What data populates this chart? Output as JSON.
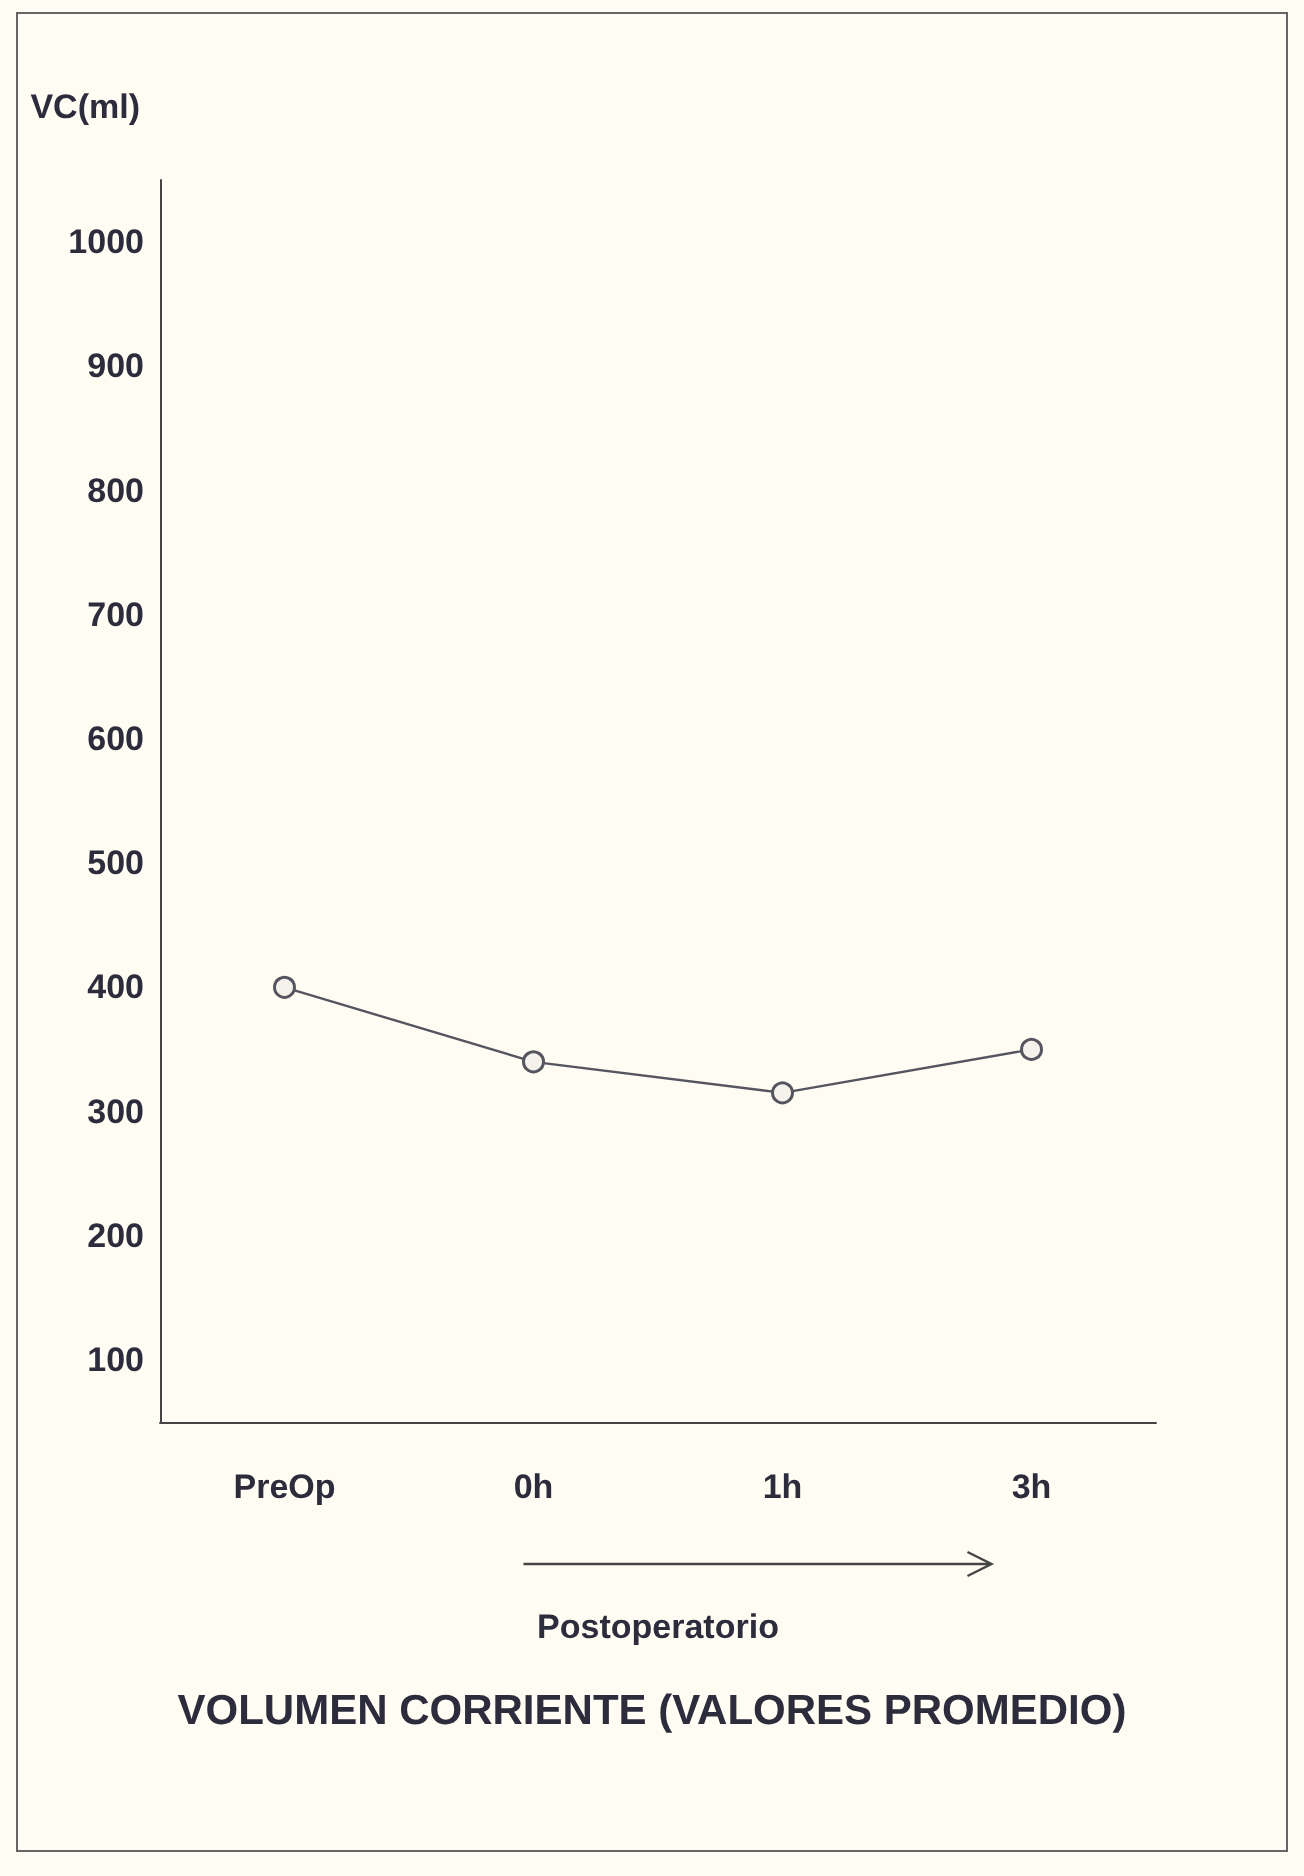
{
  "chart_data": {
    "type": "line",
    "title": "VOLUMEN CORRIENTE (VALORES PROMEDIO)",
    "ylabel": "VC(ml)",
    "xlabel": "Postoperatorio",
    "categories": [
      "PreOp",
      "0h",
      "1h",
      "3h"
    ],
    "series": [
      {
        "color": "#555560",
        "values": [
          400,
          340,
          315,
          350
        ]
      }
    ],
    "ylim": [
      50,
      1050
    ],
    "yticks": [
      100,
      200,
      300,
      400,
      500,
      600,
      700,
      800,
      900,
      1000
    ],
    "grid": false,
    "marker": "circle",
    "line_style": "solid"
  }
}
